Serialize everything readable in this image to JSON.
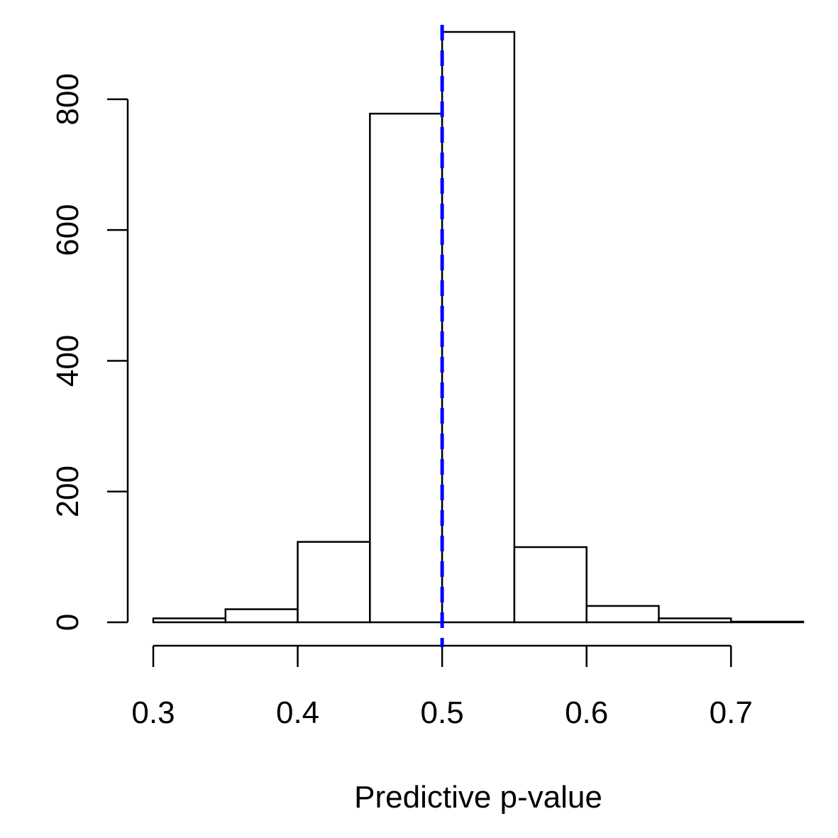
{
  "chart_data": {
    "type": "bar",
    "title": "",
    "xlabel": "Predictive p-value",
    "ylabel": "",
    "bins": [
      {
        "from": 0.3,
        "to": 0.35,
        "count": 6
      },
      {
        "from": 0.35,
        "to": 0.4,
        "count": 20
      },
      {
        "from": 0.4,
        "to": 0.45,
        "count": 123
      },
      {
        "from": 0.45,
        "to": 0.5,
        "count": 778
      },
      {
        "from": 0.5,
        "to": 0.55,
        "count": 903
      },
      {
        "from": 0.55,
        "to": 0.6,
        "count": 115
      },
      {
        "from": 0.6,
        "to": 0.65,
        "count": 25
      },
      {
        "from": 0.65,
        "to": 0.7,
        "count": 6
      },
      {
        "from": 0.7,
        "to": 0.75,
        "count": 1
      }
    ],
    "xlim": [
      0.3,
      0.75
    ],
    "ylim": [
      0,
      903
    ],
    "x_ticks": [
      0.3,
      0.4,
      0.5,
      0.6,
      0.7
    ],
    "x_tick_labels": [
      "0.3",
      "0.4",
      "0.5",
      "0.6",
      "0.7"
    ],
    "y_ticks": [
      0,
      200,
      400,
      600,
      800
    ],
    "y_tick_labels": [
      "0",
      "200",
      "400",
      "600",
      "800"
    ],
    "reference_line": {
      "x": 0.5,
      "color": "#0000ff",
      "style": "dashed"
    },
    "grid": false,
    "bar_fill": "#ffffff",
    "bar_stroke": "#000000"
  }
}
